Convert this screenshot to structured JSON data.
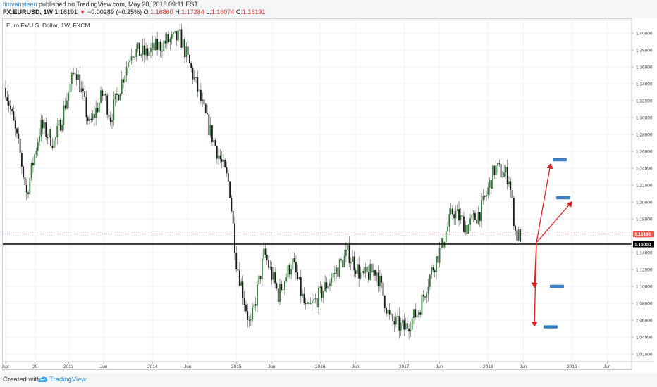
{
  "header": {
    "author": "timvansteen",
    "published": " published on TradingView.com, May 28, 2018 09:11 EST",
    "symbol": "FX:EURUSD, 1W",
    "last": "1.16191",
    "arrow": "▼",
    "change": "−0.00289 (−0.25%)",
    "o_label": "O:",
    "o_value": "1.16860",
    "h_label": "H:",
    "h_value": "1.17284",
    "l_label": "L:",
    "l_value": "1.16074",
    "c_label": "C:",
    "c_value": "1.16191"
  },
  "instrument_label": "Euro Fx/U.S. Dollar, 1W, FXCM",
  "footer": {
    "created": "Created with",
    "brand": "TradingView"
  },
  "colors": {
    "up": "#26a69a",
    "down": "#ef5350",
    "candle_up_fill": "#2e7d32",
    "candle_down_fill": "#1b1b1b",
    "arrow": "#e02020",
    "target": "#3a7fc4",
    "support": "#000000",
    "price_line": "#ef5350"
  },
  "chart_data": {
    "type": "candlestick",
    "title": "Euro Fx/U.S. Dollar, 1W, FXCM",
    "ylim": [
      1.01,
      1.41
    ],
    "y_ticks": [
      "1.40000",
      "1.38000",
      "1.36000",
      "1.34000",
      "1.32000",
      "1.30000",
      "1.28000",
      "1.26000",
      "1.24000",
      "1.22000",
      "1.20000",
      "1.18000",
      "1.16000",
      "1.14000",
      "1.12000",
      "1.10000",
      "1.08000",
      "1.06000",
      "1.04000",
      "1.02000"
    ],
    "x_labels": [
      "Apr",
      "20",
      "2013",
      "Jun",
      "2014",
      "Jun",
      "2015",
      "Jun",
      "2016",
      "Jun",
      "2017",
      "Jun",
      "2018",
      "Jun",
      "2019",
      "Jun"
    ],
    "price_path": [
      [
        "2012-04",
        1.335
      ],
      [
        "2012-06",
        1.26
      ],
      [
        "2012-07",
        1.21
      ],
      [
        "2012-09",
        1.29
      ],
      [
        "2012-11",
        1.27
      ],
      [
        "2013-02",
        1.36
      ],
      [
        "2013-04",
        1.29
      ],
      [
        "2013-06",
        1.33
      ],
      [
        "2013-07",
        1.3
      ],
      [
        "2013-10",
        1.38
      ],
      [
        "2013-12",
        1.375
      ],
      [
        "2014-03",
        1.39
      ],
      [
        "2014-05",
        1.395
      ],
      [
        "2014-07",
        1.345
      ],
      [
        "2014-09",
        1.29
      ],
      [
        "2014-12",
        1.22
      ],
      [
        "2015-01",
        1.13
      ],
      [
        "2015-03",
        1.05
      ],
      [
        "2015-05",
        1.14
      ],
      [
        "2015-07",
        1.09
      ],
      [
        "2015-09",
        1.13
      ],
      [
        "2015-11",
        1.07
      ],
      [
        "2016-01",
        1.09
      ],
      [
        "2016-05",
        1.14
      ],
      [
        "2016-07",
        1.11
      ],
      [
        "2016-09",
        1.12
      ],
      [
        "2016-11",
        1.06
      ],
      [
        "2017-01",
        1.05
      ],
      [
        "2017-03",
        1.07
      ],
      [
        "2017-05",
        1.12
      ],
      [
        "2017-06",
        1.14
      ],
      [
        "2017-08",
        1.19
      ],
      [
        "2017-10",
        1.17
      ],
      [
        "2017-12",
        1.19
      ],
      [
        "2018-02",
        1.24
      ],
      [
        "2018-04",
        1.23
      ],
      [
        "2018-05",
        1.16
      ]
    ],
    "horizontal_lines": [
      {
        "label": "1.15000",
        "value": 1.15,
        "style": "support"
      },
      {
        "label": "1.16191",
        "value": 1.16191,
        "style": "last-price"
      }
    ],
    "targets": [
      1.25,
      1.205,
      1.1,
      1.052
    ],
    "arrow_origin": 1.152,
    "arrow_tips": [
      1.245,
      1.2,
      1.099,
      1.053
    ]
  }
}
